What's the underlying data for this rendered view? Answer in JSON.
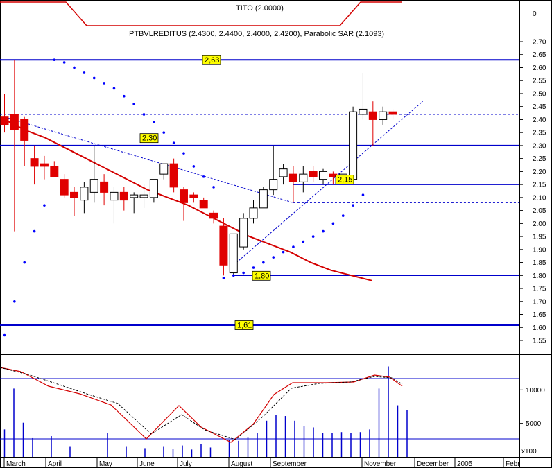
{
  "chart_data": {
    "type": "candlestick",
    "indicator_panel": {
      "title": "TITO (2.0000)",
      "tick": "0"
    },
    "main_panel": {
      "title": "PTBVLREDITUS (2.4300, 2.4400, 2.4000, 2.4200), Parabolic SAR (2.1093)",
      "ylim": [
        1.48,
        2.72
      ],
      "y_ticks": [
        "2.70",
        "2.65",
        "2.60",
        "2.55",
        "2.50",
        "2.45",
        "2.40",
        "2.35",
        "2.30",
        "2.25",
        "2.20",
        "2.15",
        "2.10",
        "2.05",
        "2.00",
        "1.95",
        "1.90",
        "1.85",
        "1.80",
        "1.75",
        "1.70",
        "1.65",
        "1.60",
        "1.55"
      ],
      "level_labels": [
        "2,63",
        "2,30",
        "2,15",
        "1,80",
        "1,61"
      ],
      "candles": [
        {
          "o": 2.41,
          "h": 2.5,
          "l": 2.35,
          "c": 2.38
        },
        {
          "o": 2.42,
          "h": 2.63,
          "l": 1.97,
          "c": 2.36
        },
        {
          "o": 2.4,
          "h": 2.41,
          "l": 2.22,
          "c": 2.32
        },
        {
          "o": 2.25,
          "h": 2.3,
          "l": 2.15,
          "c": 2.22
        },
        {
          "o": 2.23,
          "h": 2.26,
          "l": 2.17,
          "c": 2.22
        },
        {
          "o": 2.22,
          "h": 2.24,
          "l": 2.19,
          "c": 2.18
        },
        {
          "o": 2.17,
          "h": 2.19,
          "l": 2.1,
          "c": 2.11
        },
        {
          "o": 2.12,
          "h": 2.14,
          "l": 2.03,
          "c": 2.1
        },
        {
          "o": 2.09,
          "h": 2.16,
          "l": 2.04,
          "c": 2.14
        },
        {
          "o": 2.12,
          "h": 2.3,
          "l": 2.08,
          "c": 2.17
        },
        {
          "o": 2.16,
          "h": 2.19,
          "l": 2.07,
          "c": 2.12
        },
        {
          "o": 2.09,
          "h": 2.14,
          "l": 2.0,
          "c": 2.12
        },
        {
          "o": 2.12,
          "h": 2.14,
          "l": 2.05,
          "c": 2.09
        },
        {
          "o": 2.1,
          "h": 2.12,
          "l": 2.04,
          "c": 2.11
        },
        {
          "o": 2.1,
          "h": 2.15,
          "l": 2.06,
          "c": 2.11
        },
        {
          "o": 2.1,
          "h": 2.17,
          "l": 2.08,
          "c": 2.17
        },
        {
          "o": 2.19,
          "h": 2.23,
          "l": 2.17,
          "c": 2.23
        },
        {
          "o": 2.23,
          "h": 2.25,
          "l": 2.12,
          "c": 2.14
        },
        {
          "o": 2.13,
          "h": 2.14,
          "l": 2.01,
          "c": 2.08
        },
        {
          "o": 2.11,
          "h": 2.12,
          "l": 2.08,
          "c": 2.1
        },
        {
          "o": 2.09,
          "h": 2.1,
          "l": 2.06,
          "c": 2.06
        },
        {
          "o": 2.04,
          "h": 2.05,
          "l": 2.0,
          "c": 2.02
        },
        {
          "o": 1.99,
          "h": 2.02,
          "l": 1.8,
          "c": 1.84
        },
        {
          "o": 1.81,
          "h": 1.96,
          "l": 1.8,
          "c": 1.96
        },
        {
          "o": 1.91,
          "h": 2.04,
          "l": 1.9,
          "c": 2.02
        },
        {
          "o": 2.02,
          "h": 2.09,
          "l": 2.0,
          "c": 2.06
        },
        {
          "o": 2.06,
          "h": 2.14,
          "l": 2.06,
          "c": 2.13
        },
        {
          "o": 2.13,
          "h": 2.3,
          "l": 2.11,
          "c": 2.17
        },
        {
          "o": 2.18,
          "h": 2.23,
          "l": 2.15,
          "c": 2.21
        },
        {
          "o": 2.19,
          "h": 2.22,
          "l": 2.08,
          "c": 2.16
        },
        {
          "o": 2.16,
          "h": 2.22,
          "l": 2.12,
          "c": 2.19
        },
        {
          "o": 2.2,
          "h": 2.22,
          "l": 2.16,
          "c": 2.18
        },
        {
          "o": 2.17,
          "h": 2.21,
          "l": 2.15,
          "c": 2.2
        },
        {
          "o": 2.19,
          "h": 2.2,
          "l": 2.15,
          "c": 2.18
        },
        {
          "o": 2.18,
          "h": 2.19,
          "l": 2.15,
          "c": 2.19
        },
        {
          "o": 2.17,
          "h": 2.45,
          "l": 2.17,
          "c": 2.43
        },
        {
          "o": 2.42,
          "h": 2.58,
          "l": 2.4,
          "c": 2.44
        },
        {
          "o": 2.43,
          "h": 2.47,
          "l": 2.3,
          "c": 2.4
        },
        {
          "o": 2.4,
          "h": 2.45,
          "l": 2.38,
          "c": 2.43
        },
        {
          "o": 2.43,
          "h": 2.44,
          "l": 2.4,
          "c": 2.42
        }
      ],
      "moving_average": [
        [
          2.4,
          2.38
        ],
        [
          2.36,
          2.34
        ],
        [
          2.33,
          2.31
        ],
        [
          2.29,
          2.28
        ],
        [
          2.25,
          2.23
        ],
        [
          2.21,
          2.19
        ],
        [
          2.17,
          2.15
        ],
        [
          2.13,
          2.11
        ],
        [
          2.1,
          2.08
        ],
        [
          2.07,
          2.05
        ],
        [
          2.03,
          2.01
        ],
        [
          1.99,
          1.97
        ],
        [
          1.95,
          1.94
        ],
        [
          1.92,
          1.91
        ],
        [
          1.89,
          1.87
        ],
        [
          1.85,
          1.84
        ],
        [
          1.82,
          1.81
        ],
        [
          1.8,
          1.79
        ],
        [
          1.78,
          1.77
        ]
      ],
      "parabolic_sar": [
        1.57,
        1.7,
        1.85,
        1.97,
        2.07,
        2.63,
        2.62,
        2.6,
        2.58,
        2.56,
        2.54,
        2.52,
        2.49,
        2.46,
        2.42,
        2.39,
        2.35,
        2.31,
        2.27,
        2.22,
        2.18,
        2.14,
        1.79,
        1.8,
        1.81,
        1.83,
        1.85,
        1.87,
        1.89,
        1.91,
        1.93,
        1.95,
        1.97,
        2.0,
        2.03,
        2.07,
        2.11
      ],
      "horizontal_levels": [
        2.63,
        2.3,
        1.61
      ],
      "support_levels": [
        2.15,
        1.8
      ],
      "dotted_levels": [
        2.42,
        2.08
      ],
      "trend_line_dashed": [
        [
          0,
          2.41
        ],
        [
          29,
          2.08
        ]
      ],
      "trend_line_up": [
        [
          23,
          1.84
        ],
        [
          42,
          2.47
        ]
      ]
    },
    "lower_panel": {
      "y_ticks": [
        "10000",
        "5000"
      ],
      "scale_note": "x100",
      "volume": [
        4100,
        10200,
        5100,
        2800,
        0,
        3100,
        0,
        1600,
        0,
        0,
        0,
        3600,
        0,
        1600,
        0,
        1300,
        0,
        1600,
        1200,
        1700,
        1100,
        1900,
        1400,
        0,
        2500,
        2400,
        3000,
        3600,
        5400,
        6300,
        6100,
        5400,
        4600,
        4400,
        3600,
        3600,
        3700,
        3600,
        3700,
        4100,
        10200,
        13500,
        7700,
        7000
      ],
      "line_solid": [
        [
          0,
          0.3
        ],
        [
          0.15,
          0.3
        ],
        [
          0.35,
          0.21
        ],
        [
          0.56,
          0.18
        ],
        [
          0.68,
          0.2
        ],
        [
          0.8,
          0.17
        ],
        [
          1.0,
          0.21
        ]
      ],
      "line_dashed": [
        [
          0,
          0.29
        ],
        [
          0.15,
          0.29
        ],
        [
          0.35,
          0.2
        ],
        [
          0.56,
          0.2
        ],
        [
          0.68,
          0.21
        ],
        [
          0.8,
          0.18
        ],
        [
          1.0,
          0.2
        ]
      ]
    },
    "x_axis": {
      "months": [
        "March",
        "April",
        "May",
        "June",
        "July",
        "August",
        "September",
        "November",
        "December",
        "2005",
        "Febr"
      ]
    },
    "colors": {
      "level_line": "#0000cc",
      "bear_candle": "#e00000",
      "ma_line": "#d40000",
      "sar_dot": "#0000ff",
      "label_bg": "#ffff00"
    }
  }
}
